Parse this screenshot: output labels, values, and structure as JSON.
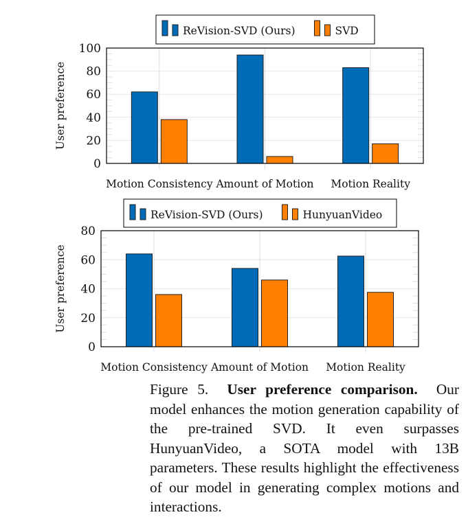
{
  "chart_data": [
    {
      "type": "bar",
      "categories": [
        "Motion Consistency",
        "Amount of Motion",
        "Motion Reality"
      ],
      "series": [
        {
          "name": "ReVision-SVD (Ours)",
          "values": [
            62,
            94,
            83
          ],
          "color": "#006bb6"
        },
        {
          "name": "SVD",
          "values": [
            38,
            6,
            17
          ],
          "color": "#ff8000"
        }
      ],
      "ylabel": "User preference",
      "xlabel": "",
      "ylim": [
        0,
        100
      ],
      "yticks": [
        0,
        20,
        40,
        60,
        80,
        100
      ],
      "grid": true,
      "legend": "top-center"
    },
    {
      "type": "bar",
      "categories": [
        "Motion Consistency",
        "Amount of Motion",
        "Motion Reality"
      ],
      "series": [
        {
          "name": "ReVision-SVD (Ours)",
          "values": [
            64,
            54,
            62.5
          ],
          "color": "#006bb6"
        },
        {
          "name": "HunyuanVideo",
          "values": [
            36,
            46,
            37.5
          ],
          "color": "#ff8000"
        }
      ],
      "ylabel": "User preference",
      "xlabel": "",
      "ylim": [
        0,
        80
      ],
      "yticks": [
        0,
        20,
        40,
        60,
        80
      ],
      "grid": true,
      "legend": "top-center"
    }
  ],
  "caption": {
    "label": "Figure 5.",
    "title": "User preference comparison.",
    "text": "Our model enhances the motion generation capability of the pre-trained SVD. It even surpasses HunyuanVideo, a SOTA model with 13B parameters. These results highlight the effectiveness of our model in generating complex motions and interactions."
  }
}
